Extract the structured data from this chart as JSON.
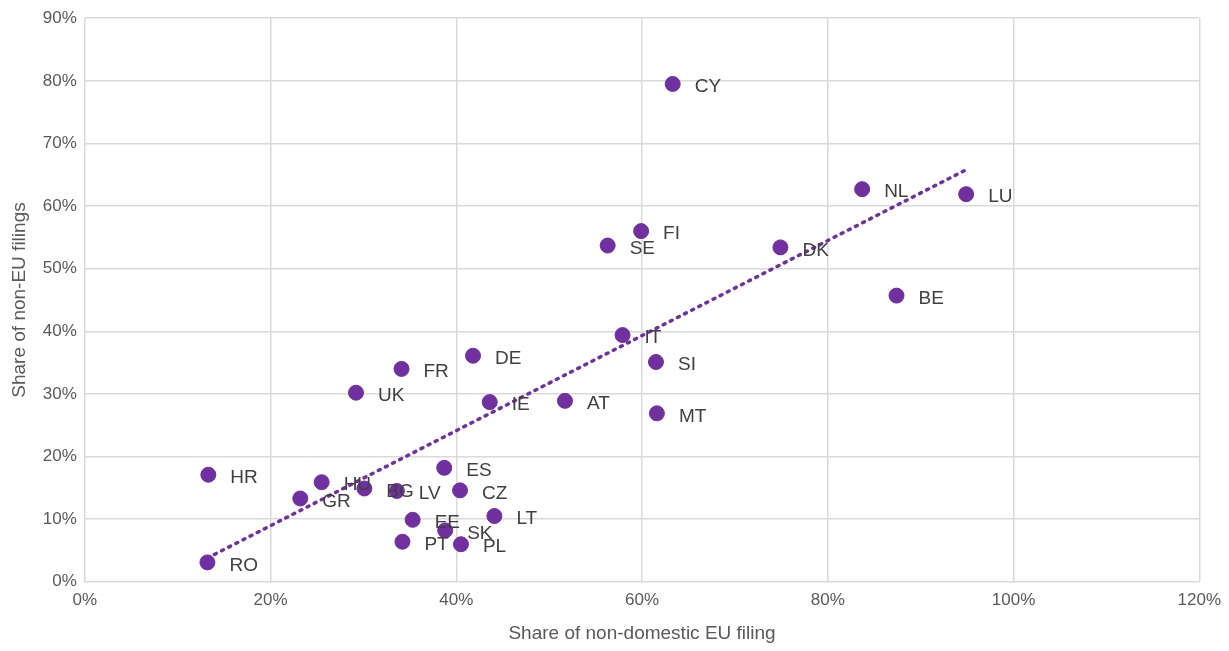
{
  "chart_data": {
    "type": "scatter",
    "xlabel": "Share of non-domestic EU filing",
    "ylabel": "Share of non-EU filings",
    "xlim": [
      0,
      120
    ],
    "ylim": [
      0,
      90
    ],
    "xticks": [
      {
        "value": 0,
        "label": "0%"
      },
      {
        "value": 20,
        "label": "20%"
      },
      {
        "value": 40,
        "label": "40%"
      },
      {
        "value": 60,
        "label": "60%"
      },
      {
        "value": 80,
        "label": "80%"
      },
      {
        "value": 100,
        "label": "100%"
      },
      {
        "value": 120,
        "label": "120%"
      }
    ],
    "yticks": [
      {
        "value": 0,
        "label": "0%"
      },
      {
        "value": 10,
        "label": "10%"
      },
      {
        "value": 20,
        "label": "20%"
      },
      {
        "value": 30,
        "label": "30%"
      },
      {
        "value": 40,
        "label": "40%"
      },
      {
        "value": 50,
        "label": "50%"
      },
      {
        "value": 60,
        "label": "60%"
      },
      {
        "value": 70,
        "label": "70%"
      },
      {
        "value": 80,
        "label": "80%"
      },
      {
        "value": 90,
        "label": "90%"
      }
    ],
    "grid": true,
    "marker": "circle",
    "series": [
      {
        "color": "#7030a0",
        "x": [
          63.3,
          83.7,
          94.9,
          59.9,
          56.3,
          74.9,
          87.4,
          57.9,
          41.8,
          61.5,
          34.1,
          29.2,
          43.6,
          51.7,
          61.6,
          13.3,
          38.7,
          25.5,
          23.2,
          30.1,
          33.6,
          40.4,
          35.3,
          38.8,
          44.1,
          34.2,
          40.5,
          13.2
        ],
        "values": [
          79.5,
          62.7,
          61.9,
          56.0,
          53.7,
          53.4,
          45.7,
          39.4,
          36.1,
          35.1,
          34.0,
          30.2,
          28.7,
          28.9,
          26.9,
          17.1,
          18.2,
          15.9,
          13.3,
          14.9,
          14.5,
          14.6,
          9.9,
          8.2,
          10.5,
          6.4,
          6.0,
          3.1
        ]
      },
      {
        "type": "line",
        "color": "#7030a0",
        "line_style": "dotted",
        "marker": "none",
        "x": [
          13.2,
          94.9
        ],
        "values": [
          3.8,
          65.8
        ]
      }
    ],
    "annotations": [
      {
        "text": "CY",
        "x": 63.3,
        "y": 79.5
      },
      {
        "text": "NL",
        "x": 83.7,
        "y": 62.7
      },
      {
        "text": "LU",
        "x": 94.9,
        "y": 61.9
      },
      {
        "text": "FI",
        "x": 59.9,
        "y": 56.0
      },
      {
        "text": "SE",
        "x": 56.3,
        "y": 53.7
      },
      {
        "text": "DK",
        "x": 74.9,
        "y": 53.4
      },
      {
        "text": "BE",
        "x": 87.4,
        "y": 45.7
      },
      {
        "text": "IT",
        "x": 57.9,
        "y": 39.4
      },
      {
        "text": "DE",
        "x": 41.8,
        "y": 36.1
      },
      {
        "text": "SI",
        "x": 61.5,
        "y": 35.1
      },
      {
        "text": "FR",
        "x": 34.1,
        "y": 34.0
      },
      {
        "text": "UK",
        "x": 29.2,
        "y": 30.2
      },
      {
        "text": "IE",
        "x": 43.6,
        "y": 28.7
      },
      {
        "text": "AT",
        "x": 51.7,
        "y": 28.9
      },
      {
        "text": "MT",
        "x": 61.6,
        "y": 26.9
      },
      {
        "text": "HR",
        "x": 13.3,
        "y": 17.1
      },
      {
        "text": "ES",
        "x": 38.7,
        "y": 18.2
      },
      {
        "text": "HU",
        "x": 25.5,
        "y": 15.9
      },
      {
        "text": "GR",
        "x": 23.2,
        "y": 13.3
      },
      {
        "text": "BG",
        "x": 30.1,
        "y": 14.9
      },
      {
        "text": "LV",
        "x": 33.6,
        "y": 14.5
      },
      {
        "text": "CZ",
        "x": 40.4,
        "y": 14.6
      },
      {
        "text": "EE",
        "x": 35.3,
        "y": 9.9
      },
      {
        "text": "SK",
        "x": 38.8,
        "y": 8.2
      },
      {
        "text": "LT",
        "x": 44.1,
        "y": 10.5
      },
      {
        "text": "PT",
        "x": 34.2,
        "y": 6.4
      },
      {
        "text": "PL",
        "x": 40.5,
        "y": 6.0
      },
      {
        "text": "RO",
        "x": 13.2,
        "y": 3.1
      }
    ]
  }
}
